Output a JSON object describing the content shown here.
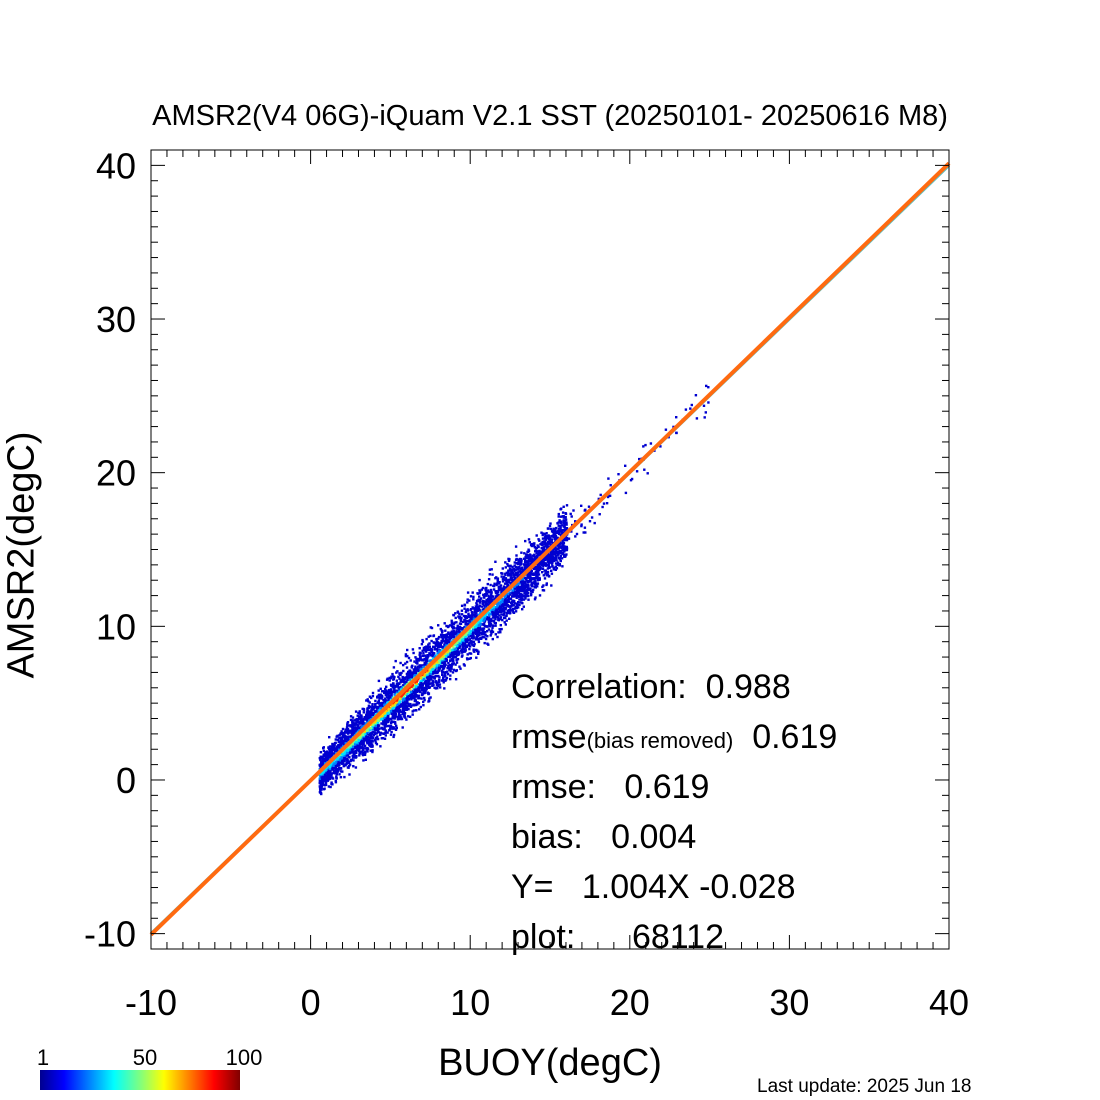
{
  "chart_data": {
    "type": "scatter",
    "title": "AMSR2(V4 06G)-iQuam V2.1 SST (20250101- 20250616 M8)",
    "xlabel": "BUOY(degC)",
    "ylabel": "AMSR2(degC)",
    "xlim": [
      -10,
      40
    ],
    "ylim": [
      -11,
      41
    ],
    "xticks": [
      "-10",
      "0",
      "10",
      "20",
      "30",
      "40"
    ],
    "yticks": [
      "-10",
      "0",
      "10",
      "20",
      "30",
      "40"
    ],
    "xtick_values": [
      -10,
      0,
      10,
      20,
      30,
      40
    ],
    "ytick_values": [
      -10,
      0,
      10,
      20,
      30,
      40
    ],
    "grid": false,
    "lines": [
      {
        "kind": "one-to-one",
        "slope": 1.0,
        "intercept": 0.0,
        "color": "#5fc0c0"
      },
      {
        "kind": "regression",
        "slope": 1.004,
        "intercept": -0.028,
        "color": "#ff6a10"
      }
    ],
    "density": {
      "description_points": [
        {
          "x": 0.5,
          "y": 0.4
        },
        {
          "x": 1.5,
          "y": 1.5
        },
        {
          "x": 3,
          "y": 2.9
        },
        {
          "x": 5,
          "y": 5.1
        },
        {
          "x": 7,
          "y": 6.9
        },
        {
          "x": 9,
          "y": 9.1
        },
        {
          "x": 11,
          "y": 10.8
        },
        {
          "x": 13,
          "y": 13.1
        },
        {
          "x": 15,
          "y": 15.0
        },
        {
          "x": 17,
          "y": 17.2
        },
        {
          "x": 20,
          "y": 20.3
        },
        {
          "x": 23,
          "y": 23.8
        }
      ],
      "colorbar": {
        "min_label": "1",
        "mid_label": "50",
        "max_label": "100"
      }
    },
    "stats": {
      "correlation_label": "Correlation:",
      "correlation_value": "0.988",
      "rmse_br_label": "rmse",
      "rmse_br_sub": "(bias removed)",
      "rmse_br_value": "0.619",
      "rmse_label": "rmse:",
      "rmse_value": "0.619",
      "bias_label": "bias:",
      "bias_value": "0.004",
      "eq_label": "Y=",
      "eq_value": "1.004X -0.028",
      "plot_label": "plot:",
      "plot_value": "68112"
    }
  },
  "footer": {
    "last_update": "Last update: 2025 Jun 18"
  },
  "colors": {
    "one_to_one": "#5fc0c0",
    "regression": "#ff6a10"
  }
}
